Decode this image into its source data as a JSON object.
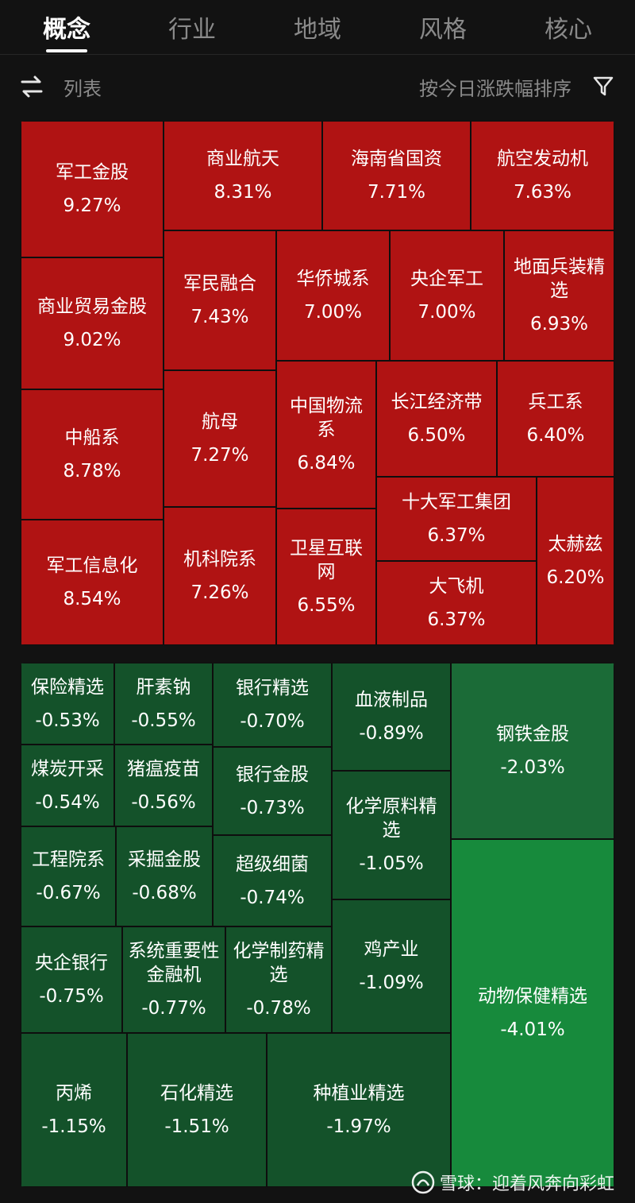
{
  "tabs": [
    {
      "label": "概念",
      "active": true
    },
    {
      "label": "行业",
      "active": false
    },
    {
      "label": "地域",
      "active": false
    },
    {
      "label": "风格",
      "active": false
    },
    {
      "label": "核心",
      "active": false
    }
  ],
  "toolbar": {
    "swap_icon": "swap-arrows-icon",
    "list_label": "列表",
    "sort_label": "按今日涨跌幅排序",
    "filter_icon": "funnel-filter-icon"
  },
  "colors": {
    "up": "#b01313",
    "down_dark": "#14522a",
    "down_mid": "#1b6b37",
    "down_bright": "#178a3c",
    "background": "#121212"
  },
  "gainers": [
    {
      "name": "军工金股",
      "change": "9.27%"
    },
    {
      "name": "商业航天",
      "change": "8.31%"
    },
    {
      "name": "海南省国资",
      "change": "7.71%"
    },
    {
      "name": "航空发动机",
      "change": "7.63%"
    },
    {
      "name": "商业贸易金股",
      "change": "9.02%"
    },
    {
      "name": "军民融合",
      "change": "7.43%"
    },
    {
      "name": "华侨城系",
      "change": "7.00%"
    },
    {
      "name": "央企军工",
      "change": "7.00%"
    },
    {
      "name": "地面兵装精选",
      "change": "6.93%"
    },
    {
      "name": "中船系",
      "change": "8.78%"
    },
    {
      "name": "航母",
      "change": "7.27%"
    },
    {
      "name": "中国物流系",
      "change": "6.84%"
    },
    {
      "name": "长江经济带",
      "change": "6.50%"
    },
    {
      "name": "兵工系",
      "change": "6.40%"
    },
    {
      "name": "军工信息化",
      "change": "8.54%"
    },
    {
      "name": "机科院系",
      "change": "7.26%"
    },
    {
      "name": "卫星互联网",
      "change": "6.55%"
    },
    {
      "name": "十大军工集团",
      "change": "6.37%"
    },
    {
      "name": "太赫兹",
      "change": "6.20%"
    },
    {
      "name": "大飞机",
      "change": "6.37%"
    }
  ],
  "losers": [
    {
      "name": "保险精选",
      "change": "-0.53%",
      "shade": "dark"
    },
    {
      "name": "肝素钠",
      "change": "-0.55%",
      "shade": "dark"
    },
    {
      "name": "银行精选",
      "change": "-0.70%",
      "shade": "dark"
    },
    {
      "name": "血液制品",
      "change": "-0.89%",
      "shade": "dark"
    },
    {
      "name": "钢铁金股",
      "change": "-2.03%",
      "shade": "mid"
    },
    {
      "name": "煤炭开采",
      "change": "-0.54%",
      "shade": "dark"
    },
    {
      "name": "猪瘟疫苗",
      "change": "-0.56%",
      "shade": "dark"
    },
    {
      "name": "银行金股",
      "change": "-0.73%",
      "shade": "dark"
    },
    {
      "name": "化学原料精选",
      "change": "-1.05%",
      "shade": "dark"
    },
    {
      "name": "工程院系",
      "change": "-0.67%",
      "shade": "dark"
    },
    {
      "name": "采掘金股",
      "change": "-0.68%",
      "shade": "dark"
    },
    {
      "name": "超级细菌",
      "change": "-0.74%",
      "shade": "dark"
    },
    {
      "name": "央企银行",
      "change": "-0.75%",
      "shade": "dark"
    },
    {
      "name": "系统重要性金融机",
      "change": "-0.77%",
      "shade": "dark"
    },
    {
      "name": "化学制药精选",
      "change": "-0.78%",
      "shade": "dark"
    },
    {
      "name": "鸡产业",
      "change": "-1.09%",
      "shade": "dark"
    },
    {
      "name": "动物保健精选",
      "change": "-4.01%",
      "shade": "bright"
    },
    {
      "name": "丙烯",
      "change": "-1.15%",
      "shade": "dark"
    },
    {
      "name": "石化精选",
      "change": "-1.51%",
      "shade": "dark"
    },
    {
      "name": "种植业精选",
      "change": "-1.97%",
      "shade": "dark"
    }
  ],
  "watermark": {
    "logo_icon": "xueqiu-snowball-logo",
    "text": "雪球：迎着风奔向彩虹"
  }
}
